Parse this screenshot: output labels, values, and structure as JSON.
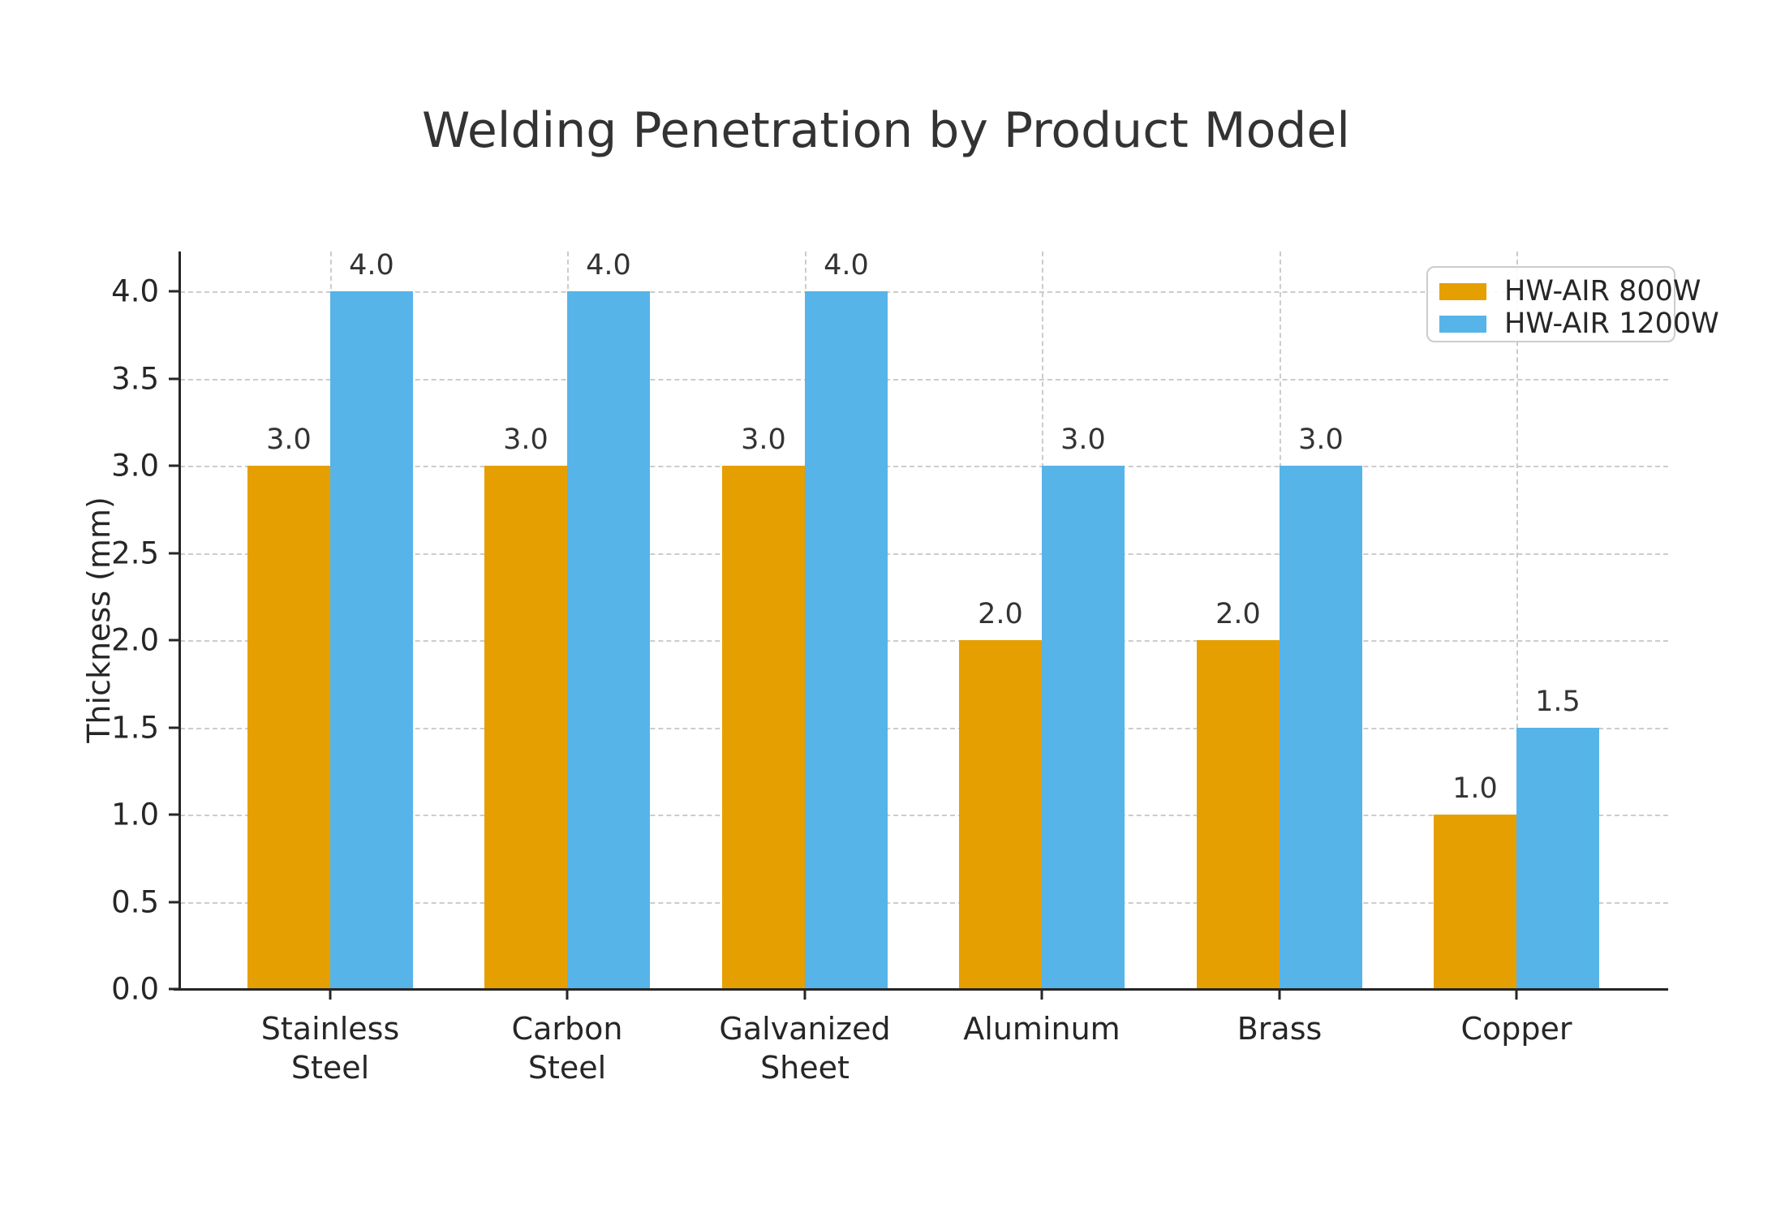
{
  "chart_data": {
    "type": "bar",
    "title": "Welding Penetration by Product Model",
    "xlabel": "",
    "ylabel": "Thickness (mm)",
    "categories": [
      "Stainless Steel",
      "Carbon Steel",
      "Galvanized Sheet",
      "Aluminum",
      "Brass",
      "Copper"
    ],
    "tick_labels": [
      "Stainless\nSteel",
      "Carbon\nSteel",
      "Galvanized\nSheet",
      "Aluminum",
      "Brass",
      "Copper"
    ],
    "series": [
      {
        "name": "HW-AIR 800W",
        "color": "#E69F00",
        "values": [
          3.0,
          3.0,
          3.0,
          2.0,
          2.0,
          1.0
        ],
        "value_labels": [
          "3.0",
          "3.0",
          "3.0",
          "2.0",
          "2.0",
          "1.0"
        ]
      },
      {
        "name": "HW-AIR 1200W",
        "color": "#56B4E9",
        "values": [
          4.0,
          4.0,
          4.0,
          3.0,
          3.0,
          1.5
        ],
        "value_labels": [
          "4.0",
          "4.0",
          "4.0",
          "3.0",
          "3.0",
          "1.5"
        ]
      }
    ],
    "yticks": [
      "0.0",
      "0.5",
      "1.0",
      "1.5",
      "2.0",
      "2.5",
      "3.0",
      "3.5",
      "4.0"
    ],
    "ylim": [
      0,
      4.23
    ],
    "grid": "dashed, horizontal at y ticks and vertical at category centers",
    "legend": {
      "position": "upper right",
      "entries": [
        "HW-AIR 800W",
        "HW-AIR 1200W"
      ]
    },
    "colors": {
      "text": "#262626",
      "title": "#333333",
      "grid": "#cccccc",
      "spine": "#262626",
      "legend_border": "#cccccc"
    }
  }
}
